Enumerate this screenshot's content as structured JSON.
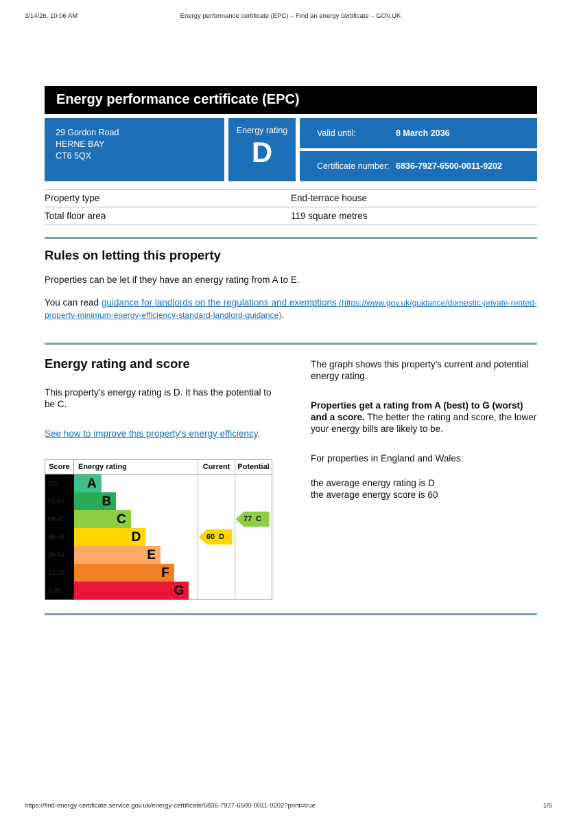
{
  "print_header": {
    "datetime": "3/14/26, 10:06 AM",
    "title": "Energy performance certificate (EPC) – Find an energy certificate – GOV.UK"
  },
  "banner": {
    "title": "Energy performance certificate (EPC)"
  },
  "summary": {
    "address_lines": [
      "29 Gordon Road",
      "HERNE BAY",
      "CT6 5QX"
    ],
    "energy_rating_label": "Energy rating",
    "energy_rating_value": "D",
    "valid_until_label": "Valid until:",
    "valid_until_value": "8 March 2036",
    "certificate_number_label": "Certificate number:",
    "certificate_number_value": "6836-7927-6500-0011-9202",
    "accent_color": "#1d70b8"
  },
  "property_facts": {
    "rows": [
      {
        "key": "Property type",
        "value": "End-terrace house"
      },
      {
        "key": "Total floor area",
        "value": "119 square metres"
      }
    ]
  },
  "rules_section": {
    "heading": "Rules on letting this property",
    "para1": "Properties can be let if they have an energy rating from A to E.",
    "para2_prefix": "You can read ",
    "link_text": "guidance for landlords on the regulations and exemptions",
    "link_url_text": " (https://www.gov.uk/guidance/domestic-private-rented-property-minimum-energy-efficiency-standard-landlord-guidance)",
    "para2_suffix": "."
  },
  "rating_section": {
    "heading": "Energy rating and score",
    "para1": "This property's energy rating is D. It has the potential to be C.",
    "link_text": "See how to improve this property's energy efficiency",
    "link_suffix": ".",
    "right_para1": "The graph shows this property's current and potential energy rating.",
    "right_para2_bold": "Properties get a rating from A (best) to G (worst) and a score.",
    "right_para2_rest": " The better the rating and score, the lower your energy bills are likely to be.",
    "right_para3": "For properties in England and Wales:",
    "right_line1": "the average energy rating is D",
    "right_line2": "the average energy score is 60"
  },
  "chart_data": {
    "type": "epc-rating-bands",
    "columns": [
      "Score",
      "Energy rating",
      "Current",
      "Potential"
    ],
    "bands": [
      {
        "score": "92+",
        "letter": "A",
        "color": "#3cc18a",
        "width_pct": 22
      },
      {
        "score": "81-91",
        "letter": "B",
        "color": "#27ab53",
        "width_pct": 34
      },
      {
        "score": "69-80",
        "letter": "C",
        "color": "#8dce46",
        "width_pct": 46
      },
      {
        "score": "55-68",
        "letter": "D",
        "color": "#ffd500",
        "width_pct": 58
      },
      {
        "score": "39-54",
        "letter": "E",
        "color": "#fcaa65",
        "width_pct": 70
      },
      {
        "score": "21-38",
        "letter": "F",
        "color": "#ef8023",
        "width_pct": 81
      },
      {
        "score": "1-20",
        "letter": "G",
        "color": "#e9153b",
        "width_pct": 93
      }
    ],
    "current": {
      "score": "60",
      "band": "D",
      "color": "#ffd500"
    },
    "potential": {
      "score": "77",
      "band": "C",
      "color": "#8dce46"
    }
  },
  "print_footer": {
    "url": "https://find-energy-certificate.service.gov.uk/energy-certificate/6836-7927-6500-0011-9202?print=true",
    "page": "1/5"
  }
}
